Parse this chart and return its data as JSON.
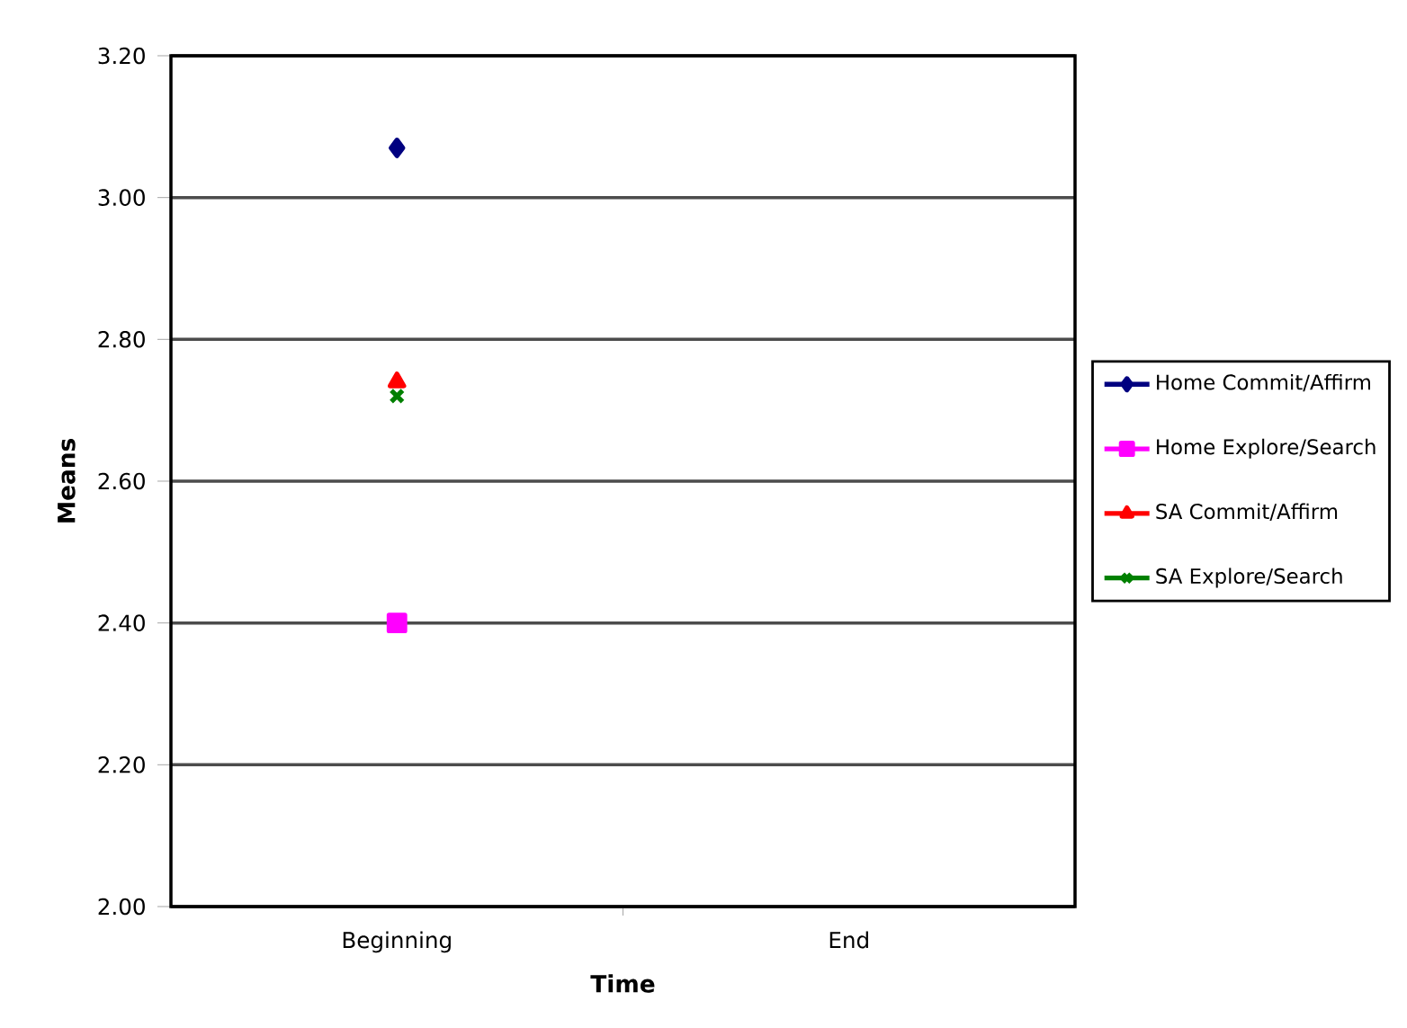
{
  "chart_data": {
    "type": "line",
    "xlabel": "Time",
    "ylabel": "Means",
    "categories": [
      "Beginning",
      "End"
    ],
    "series": [
      {
        "name": "Home Commit/Affirm",
        "color": "#000080",
        "marker": "diamond",
        "values": [
          3.07,
          null
        ]
      },
      {
        "name": "Home Explore/Search",
        "color": "#ff00ff",
        "marker": "square",
        "values": [
          2.4,
          null
        ]
      },
      {
        "name": "SA Commit/Affirm",
        "color": "#ff0000",
        "marker": "triangle",
        "values": [
          2.74,
          null
        ]
      },
      {
        "name": "SA Explore/Search",
        "color": "#008000",
        "marker": "cross",
        "values": [
          2.72,
          null
        ]
      }
    ],
    "ylim": [
      2.0,
      3.2
    ],
    "yticks": [
      {
        "value": 2.0,
        "label": "2.00"
      },
      {
        "value": 2.2,
        "label": "2.20"
      },
      {
        "value": 2.4,
        "label": "2.40"
      },
      {
        "value": 2.6,
        "label": "2.60"
      },
      {
        "value": 2.8,
        "label": "2.80"
      },
      {
        "value": 3.0,
        "label": "3.00"
      },
      {
        "value": 3.2,
        "label": "3.20"
      }
    ],
    "grid": "y",
    "legend": "right"
  }
}
